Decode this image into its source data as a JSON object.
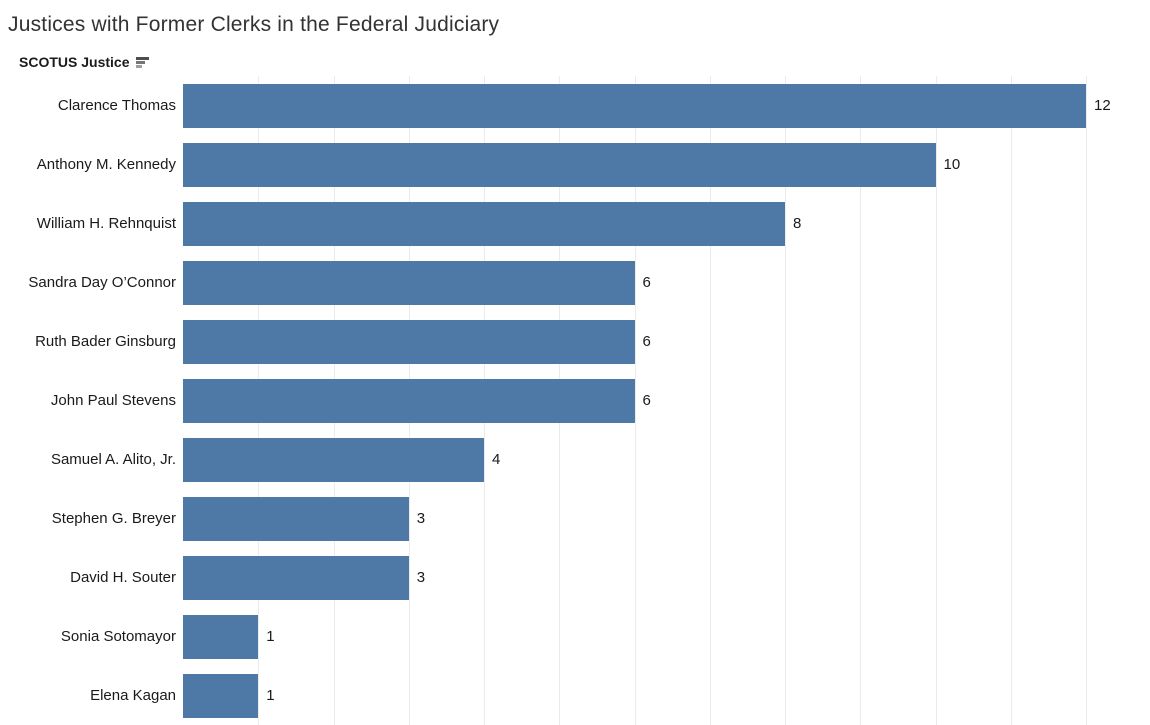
{
  "title": "Justices with Former Clerks in the Federal Judiciary",
  "column_header": {
    "label": "SCOTUS Justice",
    "sort_icon": "sort-descending"
  },
  "chart_data": {
    "type": "bar",
    "orientation": "horizontal",
    "title": "Justices with Former Clerks in the Federal Judiciary",
    "ylabel": "SCOTUS Justice",
    "xlabel": "",
    "sort": "descending",
    "categories": [
      "Clarence Thomas",
      "Anthony M. Kennedy",
      "William H. Rehnquist",
      "Sandra Day O’Connor",
      "Ruth Bader Ginsburg",
      "John Paul Stevens",
      "Samuel A. Alito, Jr.",
      "Stephen G. Breyer",
      "David H. Souter",
      "Sonia Sotomayor",
      "Elena Kagan"
    ],
    "values": [
      12,
      10,
      8,
      6,
      6,
      6,
      4,
      3,
      3,
      1,
      1
    ],
    "value_labels": true,
    "xlim": [
      0,
      12.85
    ],
    "gridlines": {
      "show": true,
      "interval": 1,
      "max": 12
    },
    "legend": "none"
  },
  "colors": {
    "bar": "#4e79a7",
    "gridline": "#ebebeb",
    "title_text": "#333333",
    "label_text": "#1a1a1a",
    "background": "#ffffff"
  }
}
